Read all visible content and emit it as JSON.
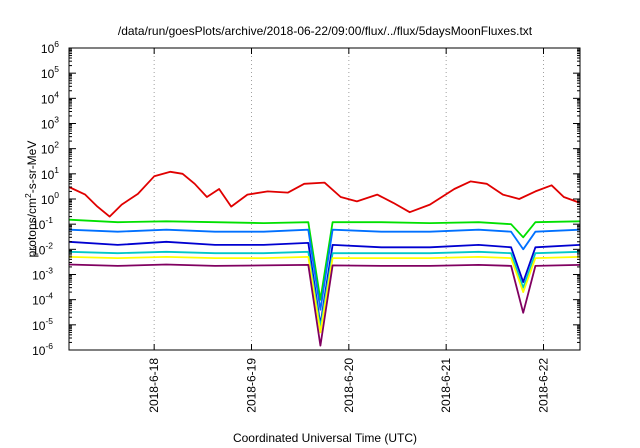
{
  "chart_data": {
    "type": "line",
    "title": "/data/run/goesPlots/archive/2018-06-22/09:00/flux/../flux/5daysMoonFluxes.txt",
    "xlabel": "Coordinated Universal Time (UTC)",
    "ylabel": {
      "prefix": "protons/cm",
      "sup": "2",
      "suffix": "-s-sr-MeV"
    },
    "x_range": [
      "2018-06-17 03:00",
      "2018-06-22 09:00"
    ],
    "x_ticks": [
      "2018-6-18",
      "2018-6-19",
      "2018-6-20",
      "2018-6-21",
      "2018-6-22"
    ],
    "x_tick_values": [
      "2018-06-18 00:00",
      "2018-06-19 00:00",
      "2018-06-20 00:00",
      "2018-06-21 00:00",
      "2018-06-22 00:00"
    ],
    "y_scale": "log",
    "ylim": [
      1e-06,
      1000000.0
    ],
    "y_ticks": [
      {
        "base": "10",
        "exp": "-6"
      },
      {
        "base": "10",
        "exp": "-5"
      },
      {
        "base": "10",
        "exp": "-4"
      },
      {
        "base": "10",
        "exp": "-3"
      },
      {
        "base": "10",
        "exp": "-2"
      },
      {
        "base": "10",
        "exp": "-1"
      },
      {
        "base": "10",
        "exp": "0"
      },
      {
        "base": "10",
        "exp": "1"
      },
      {
        "base": "10",
        "exp": "2"
      },
      {
        "base": "10",
        "exp": "3"
      },
      {
        "base": "10",
        "exp": "4"
      },
      {
        "base": "10",
        "exp": "5"
      },
      {
        "base": "10",
        "exp": "6"
      }
    ],
    "grid": "vertical dotted at major x ticks",
    "legend": "none",
    "series": [
      {
        "color": "#e00000",
        "points": [
          [
            "2018-06-17 03:00",
            3.0
          ],
          [
            "2018-06-17 07:00",
            1.5
          ],
          [
            "2018-06-17 10:00",
            0.5
          ],
          [
            "2018-06-17 13:00",
            0.2
          ],
          [
            "2018-06-17 16:00",
            0.6
          ],
          [
            "2018-06-17 20:00",
            1.6
          ],
          [
            "2018-06-18 00:00",
            8
          ],
          [
            "2018-06-18 04:00",
            12
          ],
          [
            "2018-06-18 07:00",
            10
          ],
          [
            "2018-06-18 10:00",
            4
          ],
          [
            "2018-06-18 13:00",
            1.2
          ],
          [
            "2018-06-18 16:00",
            2.5
          ],
          [
            "2018-06-18 19:00",
            0.5
          ],
          [
            "2018-06-18 23:00",
            1.5
          ],
          [
            "2018-06-19 04:00",
            2.0
          ],
          [
            "2018-06-19 09:00",
            1.8
          ],
          [
            "2018-06-19 13:00",
            4.0
          ],
          [
            "2018-06-19 18:00",
            4.5
          ],
          [
            "2018-06-19 22:00",
            1.2
          ],
          [
            "2018-06-20 02:00",
            0.8
          ],
          [
            "2018-06-20 07:00",
            1.5
          ],
          [
            "2018-06-20 11:00",
            0.7
          ],
          [
            "2018-06-20 15:00",
            0.3
          ],
          [
            "2018-06-20 20:00",
            0.6
          ],
          [
            "2018-06-21 02:00",
            2.5
          ],
          [
            "2018-06-21 06:00",
            5.0
          ],
          [
            "2018-06-21 10:00",
            4.0
          ],
          [
            "2018-06-21 14:00",
            1.5
          ],
          [
            "2018-06-21 18:00",
            1.0
          ],
          [
            "2018-06-21 22:00",
            2.0
          ],
          [
            "2018-06-22 02:00",
            3.5
          ],
          [
            "2018-06-22 05:00",
            1.2
          ],
          [
            "2018-06-22 09:00",
            0.7
          ]
        ]
      },
      {
        "color": "#00e000",
        "points": [
          [
            "2018-06-17 03:00",
            0.15
          ],
          [
            "2018-06-17 15:00",
            0.12
          ],
          [
            "2018-06-18 03:00",
            0.13
          ],
          [
            "2018-06-18 15:00",
            0.12
          ],
          [
            "2018-06-19 03:00",
            0.11
          ],
          [
            "2018-06-19 14:00",
            0.12
          ],
          [
            "2018-06-19 17:00",
            0.0001
          ],
          [
            "2018-06-19 20:00",
            0.12
          ],
          [
            "2018-06-20 08:00",
            0.12
          ],
          [
            "2018-06-20 20:00",
            0.11
          ],
          [
            "2018-06-21 08:00",
            0.12
          ],
          [
            "2018-06-21 16:00",
            0.1
          ],
          [
            "2018-06-21 19:00",
            0.03
          ],
          [
            "2018-06-21 22:00",
            0.12
          ],
          [
            "2018-06-22 09:00",
            0.13
          ]
        ]
      },
      {
        "color": "#0070ff",
        "points": [
          [
            "2018-06-17 03:00",
            0.06
          ],
          [
            "2018-06-17 15:00",
            0.05
          ],
          [
            "2018-06-18 03:00",
            0.06
          ],
          [
            "2018-06-18 15:00",
            0.05
          ],
          [
            "2018-06-19 03:00",
            0.05
          ],
          [
            "2018-06-19 14:00",
            0.06
          ],
          [
            "2018-06-19 17:00",
            4e-05
          ],
          [
            "2018-06-19 20:00",
            0.06
          ],
          [
            "2018-06-20 08:00",
            0.05
          ],
          [
            "2018-06-20 20:00",
            0.05
          ],
          [
            "2018-06-21 08:00",
            0.06
          ],
          [
            "2018-06-21 16:00",
            0.05
          ],
          [
            "2018-06-21 19:00",
            0.01
          ],
          [
            "2018-06-21 22:00",
            0.05
          ],
          [
            "2018-06-22 09:00",
            0.06
          ]
        ]
      },
      {
        "color": "#0000d0",
        "points": [
          [
            "2018-06-17 03:00",
            0.02
          ],
          [
            "2018-06-17 15:00",
            0.015
          ],
          [
            "2018-06-18 03:00",
            0.02
          ],
          [
            "2018-06-18 15:00",
            0.015
          ],
          [
            "2018-06-19 03:00",
            0.015
          ],
          [
            "2018-06-19 14:00",
            0.018
          ],
          [
            "2018-06-19 17:00",
            1e-05
          ],
          [
            "2018-06-19 20:00",
            0.015
          ],
          [
            "2018-06-20 08:00",
            0.012
          ],
          [
            "2018-06-20 20:00",
            0.012
          ],
          [
            "2018-06-21 08:00",
            0.015
          ],
          [
            "2018-06-21 16:00",
            0.012
          ],
          [
            "2018-06-21 19:00",
            0.0005
          ],
          [
            "2018-06-21 22:00",
            0.012
          ],
          [
            "2018-06-22 09:00",
            0.015
          ]
        ]
      },
      {
        "color": "#00c8c8",
        "points": [
          [
            "2018-06-17 03:00",
            0.008
          ],
          [
            "2018-06-17 15:00",
            0.007
          ],
          [
            "2018-06-18 03:00",
            0.008
          ],
          [
            "2018-06-18 15:00",
            0.007
          ],
          [
            "2018-06-19 03:00",
            0.007
          ],
          [
            "2018-06-19 14:00",
            0.008
          ],
          [
            "2018-06-19 17:00",
            8e-06
          ],
          [
            "2018-06-19 20:00",
            0.007
          ],
          [
            "2018-06-20 08:00",
            0.007
          ],
          [
            "2018-06-20 20:00",
            0.007
          ],
          [
            "2018-06-21 08:00",
            0.008
          ],
          [
            "2018-06-21 16:00",
            0.007
          ],
          [
            "2018-06-21 19:00",
            0.0003
          ],
          [
            "2018-06-21 22:00",
            0.007
          ],
          [
            "2018-06-22 09:00",
            0.008
          ]
        ]
      },
      {
        "color": "#ffff00",
        "points": [
          [
            "2018-06-17 03:00",
            0.005
          ],
          [
            "2018-06-17 15:00",
            0.0045
          ],
          [
            "2018-06-18 03:00",
            0.005
          ],
          [
            "2018-06-18 15:00",
            0.0045
          ],
          [
            "2018-06-19 03:00",
            0.0045
          ],
          [
            "2018-06-19 14:00",
            0.005
          ],
          [
            "2018-06-19 17:00",
            5e-06
          ],
          [
            "2018-06-19 20:00",
            0.0045
          ],
          [
            "2018-06-20 08:00",
            0.0045
          ],
          [
            "2018-06-20 20:00",
            0.0045
          ],
          [
            "2018-06-21 08:00",
            0.005
          ],
          [
            "2018-06-21 16:00",
            0.0045
          ],
          [
            "2018-06-21 19:00",
            0.0002
          ],
          [
            "2018-06-21 22:00",
            0.0045
          ],
          [
            "2018-06-22 09:00",
            0.005
          ]
        ]
      },
      {
        "color": "#800060",
        "points": [
          [
            "2018-06-17 03:00",
            0.0025
          ],
          [
            "2018-06-17 15:00",
            0.0022
          ],
          [
            "2018-06-18 03:00",
            0.0025
          ],
          [
            "2018-06-18 15:00",
            0.0022
          ],
          [
            "2018-06-19 03:00",
            0.0023
          ],
          [
            "2018-06-19 14:00",
            0.0024
          ],
          [
            "2018-06-19 17:00",
            1.5e-06
          ],
          [
            "2018-06-19 20:00",
            0.0023
          ],
          [
            "2018-06-20 08:00",
            0.0022
          ],
          [
            "2018-06-20 20:00",
            0.0022
          ],
          [
            "2018-06-21 08:00",
            0.0024
          ],
          [
            "2018-06-21 16:00",
            0.0022
          ],
          [
            "2018-06-21 19:00",
            3e-05
          ],
          [
            "2018-06-21 22:00",
            0.0022
          ],
          [
            "2018-06-22 09:00",
            0.0024
          ]
        ]
      }
    ]
  }
}
